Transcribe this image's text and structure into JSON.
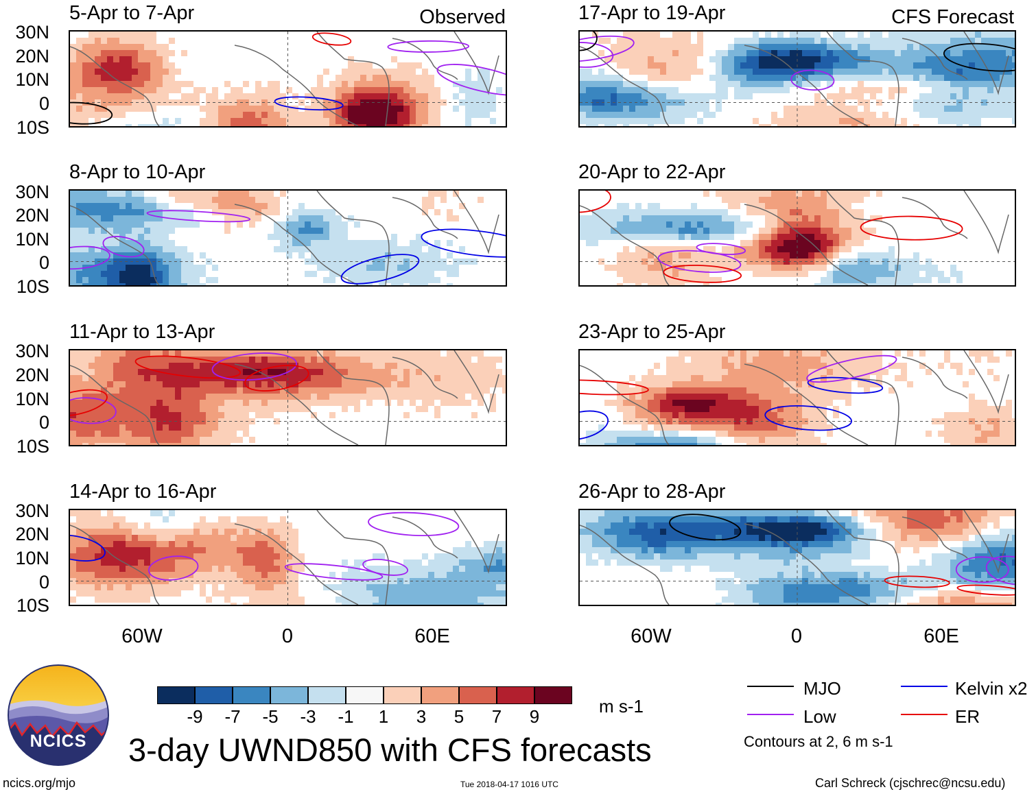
{
  "panels": [
    {
      "title": "5-Apr to 7-Apr",
      "tag": "Observed"
    },
    {
      "title": "8-Apr to 10-Apr",
      "tag": ""
    },
    {
      "title": "11-Apr to 13-Apr",
      "tag": ""
    },
    {
      "title": "14-Apr to 16-Apr",
      "tag": ""
    },
    {
      "title": "17-Apr to 19-Apr",
      "tag": "CFS Forecast"
    },
    {
      "title": "20-Apr to 22-Apr",
      "tag": ""
    },
    {
      "title": "23-Apr to 25-Apr",
      "tag": ""
    },
    {
      "title": "26-Apr to 28-Apr",
      "tag": ""
    }
  ],
  "lat_labels": [
    "30N",
    "20N",
    "10N",
    "0",
    "10S"
  ],
  "lon_labels": [
    "60W",
    "0",
    "60E"
  ],
  "colorbar": {
    "ticks": [
      "-9",
      "-7",
      "-5",
      "-3",
      "-1",
      "1",
      "3",
      "5",
      "7",
      "9"
    ],
    "colors": [
      "#0b2d5e",
      "#1f5ea8",
      "#3a86c0",
      "#7cb6da",
      "#c5e0ef",
      "#f7f7f7",
      "#fbd0b9",
      "#f1a07e",
      "#d9614e",
      "#b21f2e",
      "#6b0420"
    ],
    "units": "m s-1"
  },
  "legend": {
    "items": [
      {
        "label": "MJO",
        "color": "#000000"
      },
      {
        "label": "Kelvin x2",
        "color": "#0000e6"
      },
      {
        "label": "Low",
        "color": "#a020f0"
      },
      {
        "label": "ER",
        "color": "#e60000"
      }
    ],
    "note": "Contours at 2, 6 m s-1"
  },
  "title": "3-day UWND850 with CFS forecasts",
  "footer": {
    "site": "ncics.org/mjo",
    "timestamp": "Tue 2018-04-17 1016 UTC",
    "author": "Carl Schreck (cjschrec@ncsu.edu)"
  },
  "logo": {
    "text": "NCICS"
  }
}
